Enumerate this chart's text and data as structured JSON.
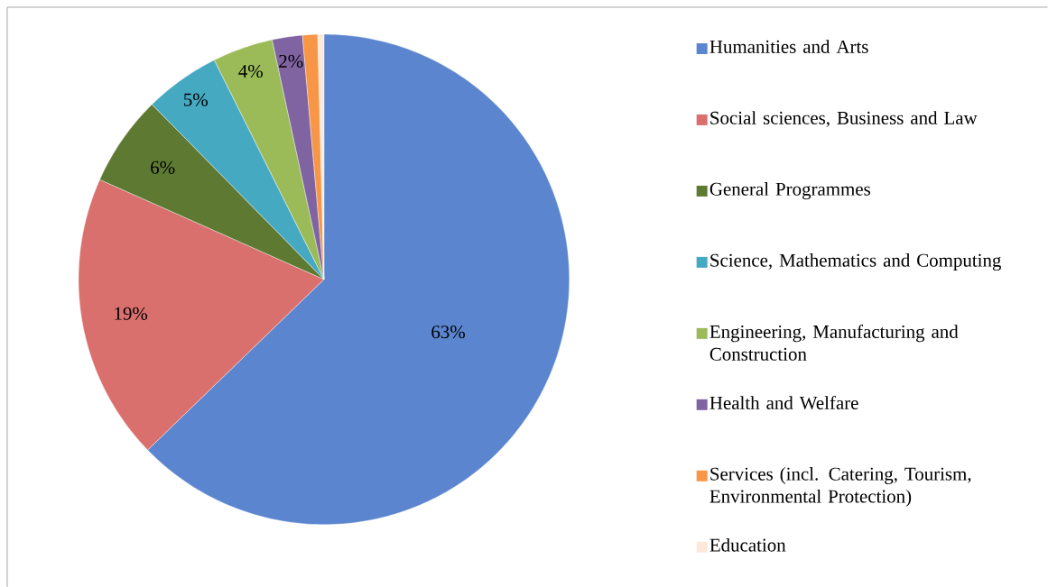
{
  "chart_data": {
    "type": "pie",
    "categories": [
      "Humanities and Arts",
      "Social sciences, Business and Law",
      "General Programmes",
      "Science, Mathematics and Computing",
      "Engineering, Manufacturing and Construction",
      "Health and Welfare",
      "Services (incl. Catering, Tourism, Environmental Protection)",
      "Education"
    ],
    "values": [
      63,
      19,
      6,
      5,
      4,
      2,
      1,
      0.4
    ],
    "value_labels": [
      "63%",
      "19%",
      "6%",
      "5%",
      "4%",
      "2%",
      null,
      null
    ],
    "colors": [
      "#5b86cf",
      "#d9706e",
      "#5e7a32",
      "#45a9c2",
      "#9bbb59",
      "#8064a2",
      "#f79646",
      "#fde9d9"
    ],
    "legend": "right"
  }
}
